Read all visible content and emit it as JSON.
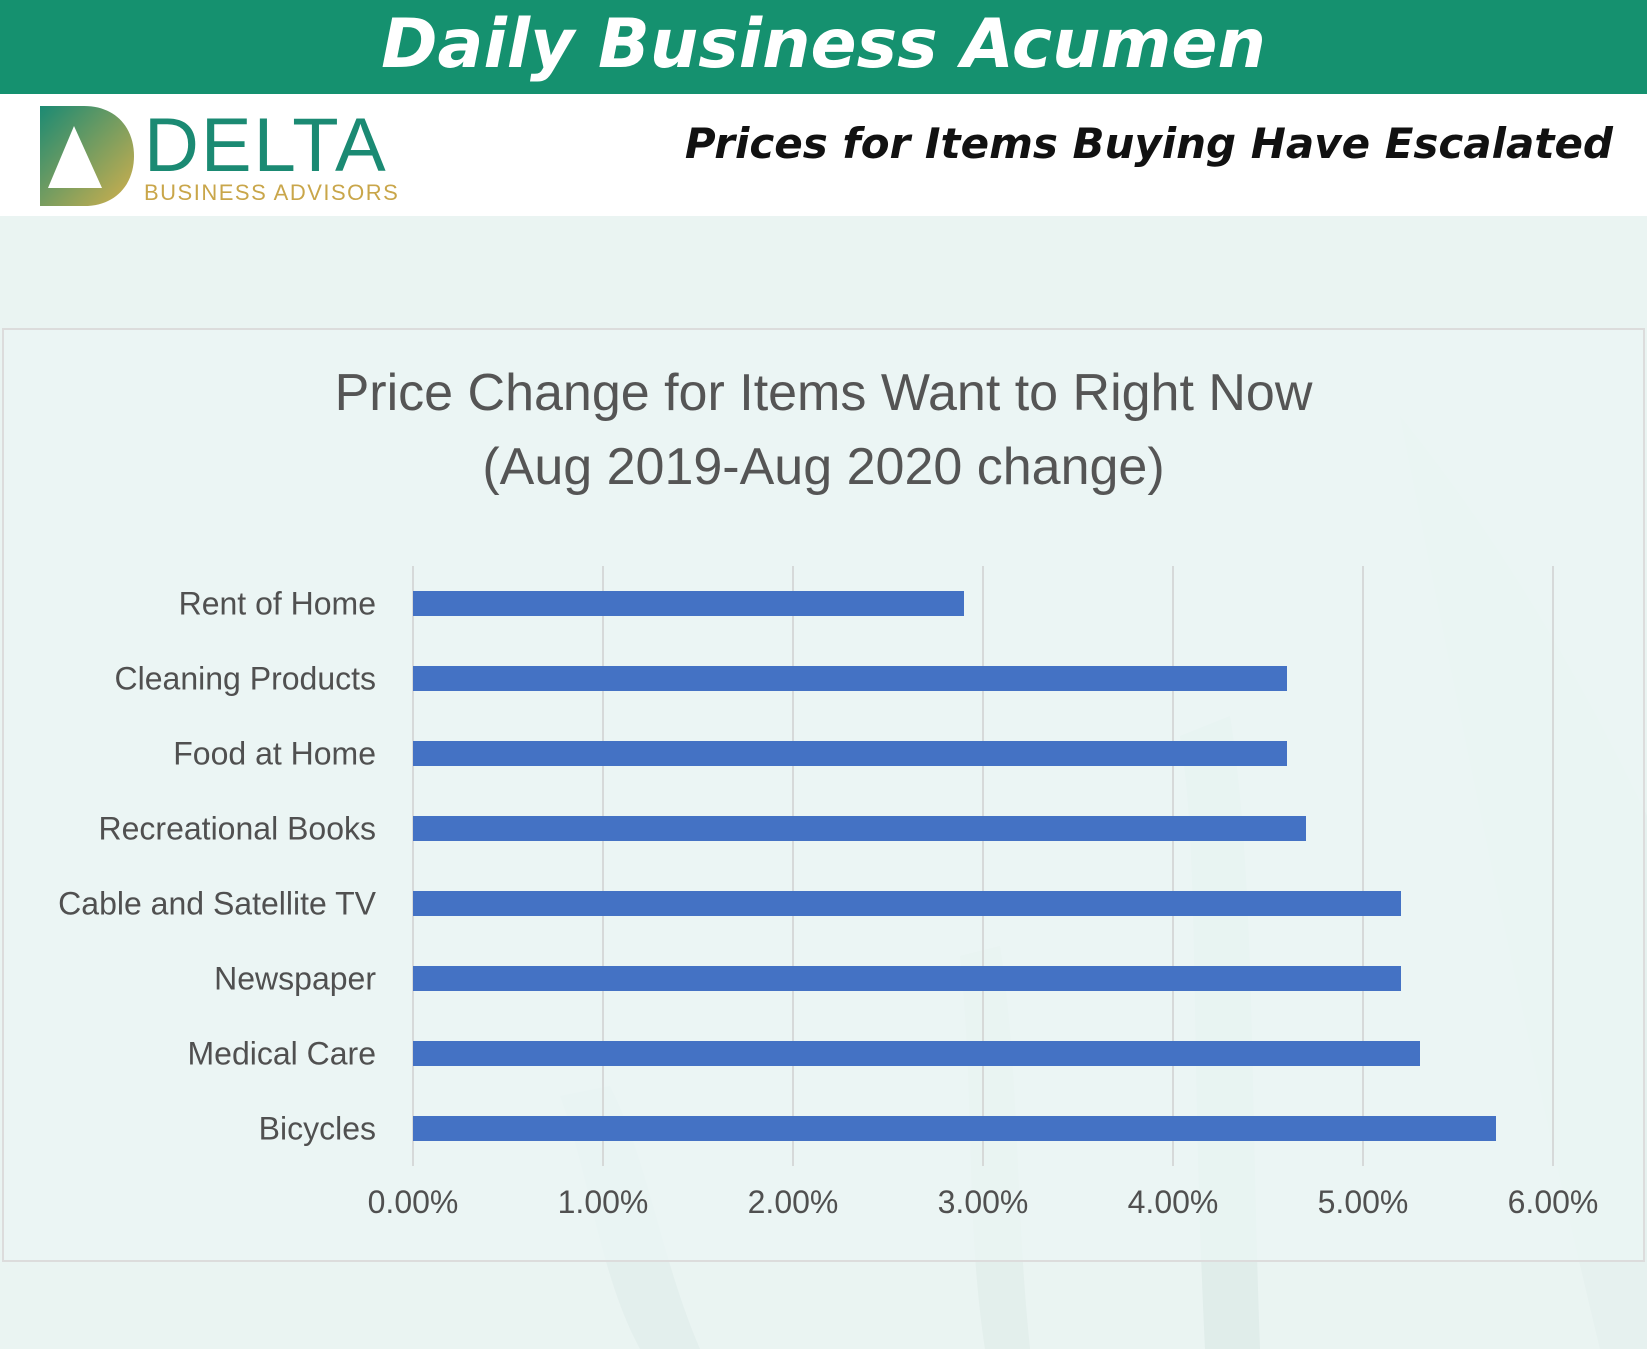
{
  "header": {
    "title": "Daily Business Acumen"
  },
  "brand": {
    "name": "DELTA",
    "tagline": "BUSINESS ADVISORS",
    "logo_icon": "delta-triangle-logo",
    "colors": {
      "green": "#1b8a73",
      "gold": "#c9a64a"
    }
  },
  "headline": "Prices for Items Buying Have Escalated",
  "colors": {
    "header_band": "#15916f",
    "bar": "#4472c4",
    "grid": "#d0d0d0"
  },
  "chart_data": {
    "type": "bar",
    "orientation": "horizontal",
    "title": [
      "Price Change for Items Want to Right Now",
      "(Aug 2019-Aug 2020 change)"
    ],
    "categories": [
      "Rent of Home",
      "Cleaning Products",
      "Food at Home",
      "Recreational Books",
      "Cable and Satellite TV",
      "Newspaper",
      "Medical Care",
      "Bicycles"
    ],
    "values": [
      2.9,
      4.6,
      4.6,
      4.7,
      5.2,
      5.2,
      5.3,
      5.7
    ],
    "value_unit": "%",
    "xlim": [
      0,
      6
    ],
    "xticks": [
      "0.00%",
      "1.00%",
      "2.00%",
      "3.00%",
      "4.00%",
      "5.00%",
      "6.00%"
    ],
    "grid": true,
    "legend": "none"
  }
}
